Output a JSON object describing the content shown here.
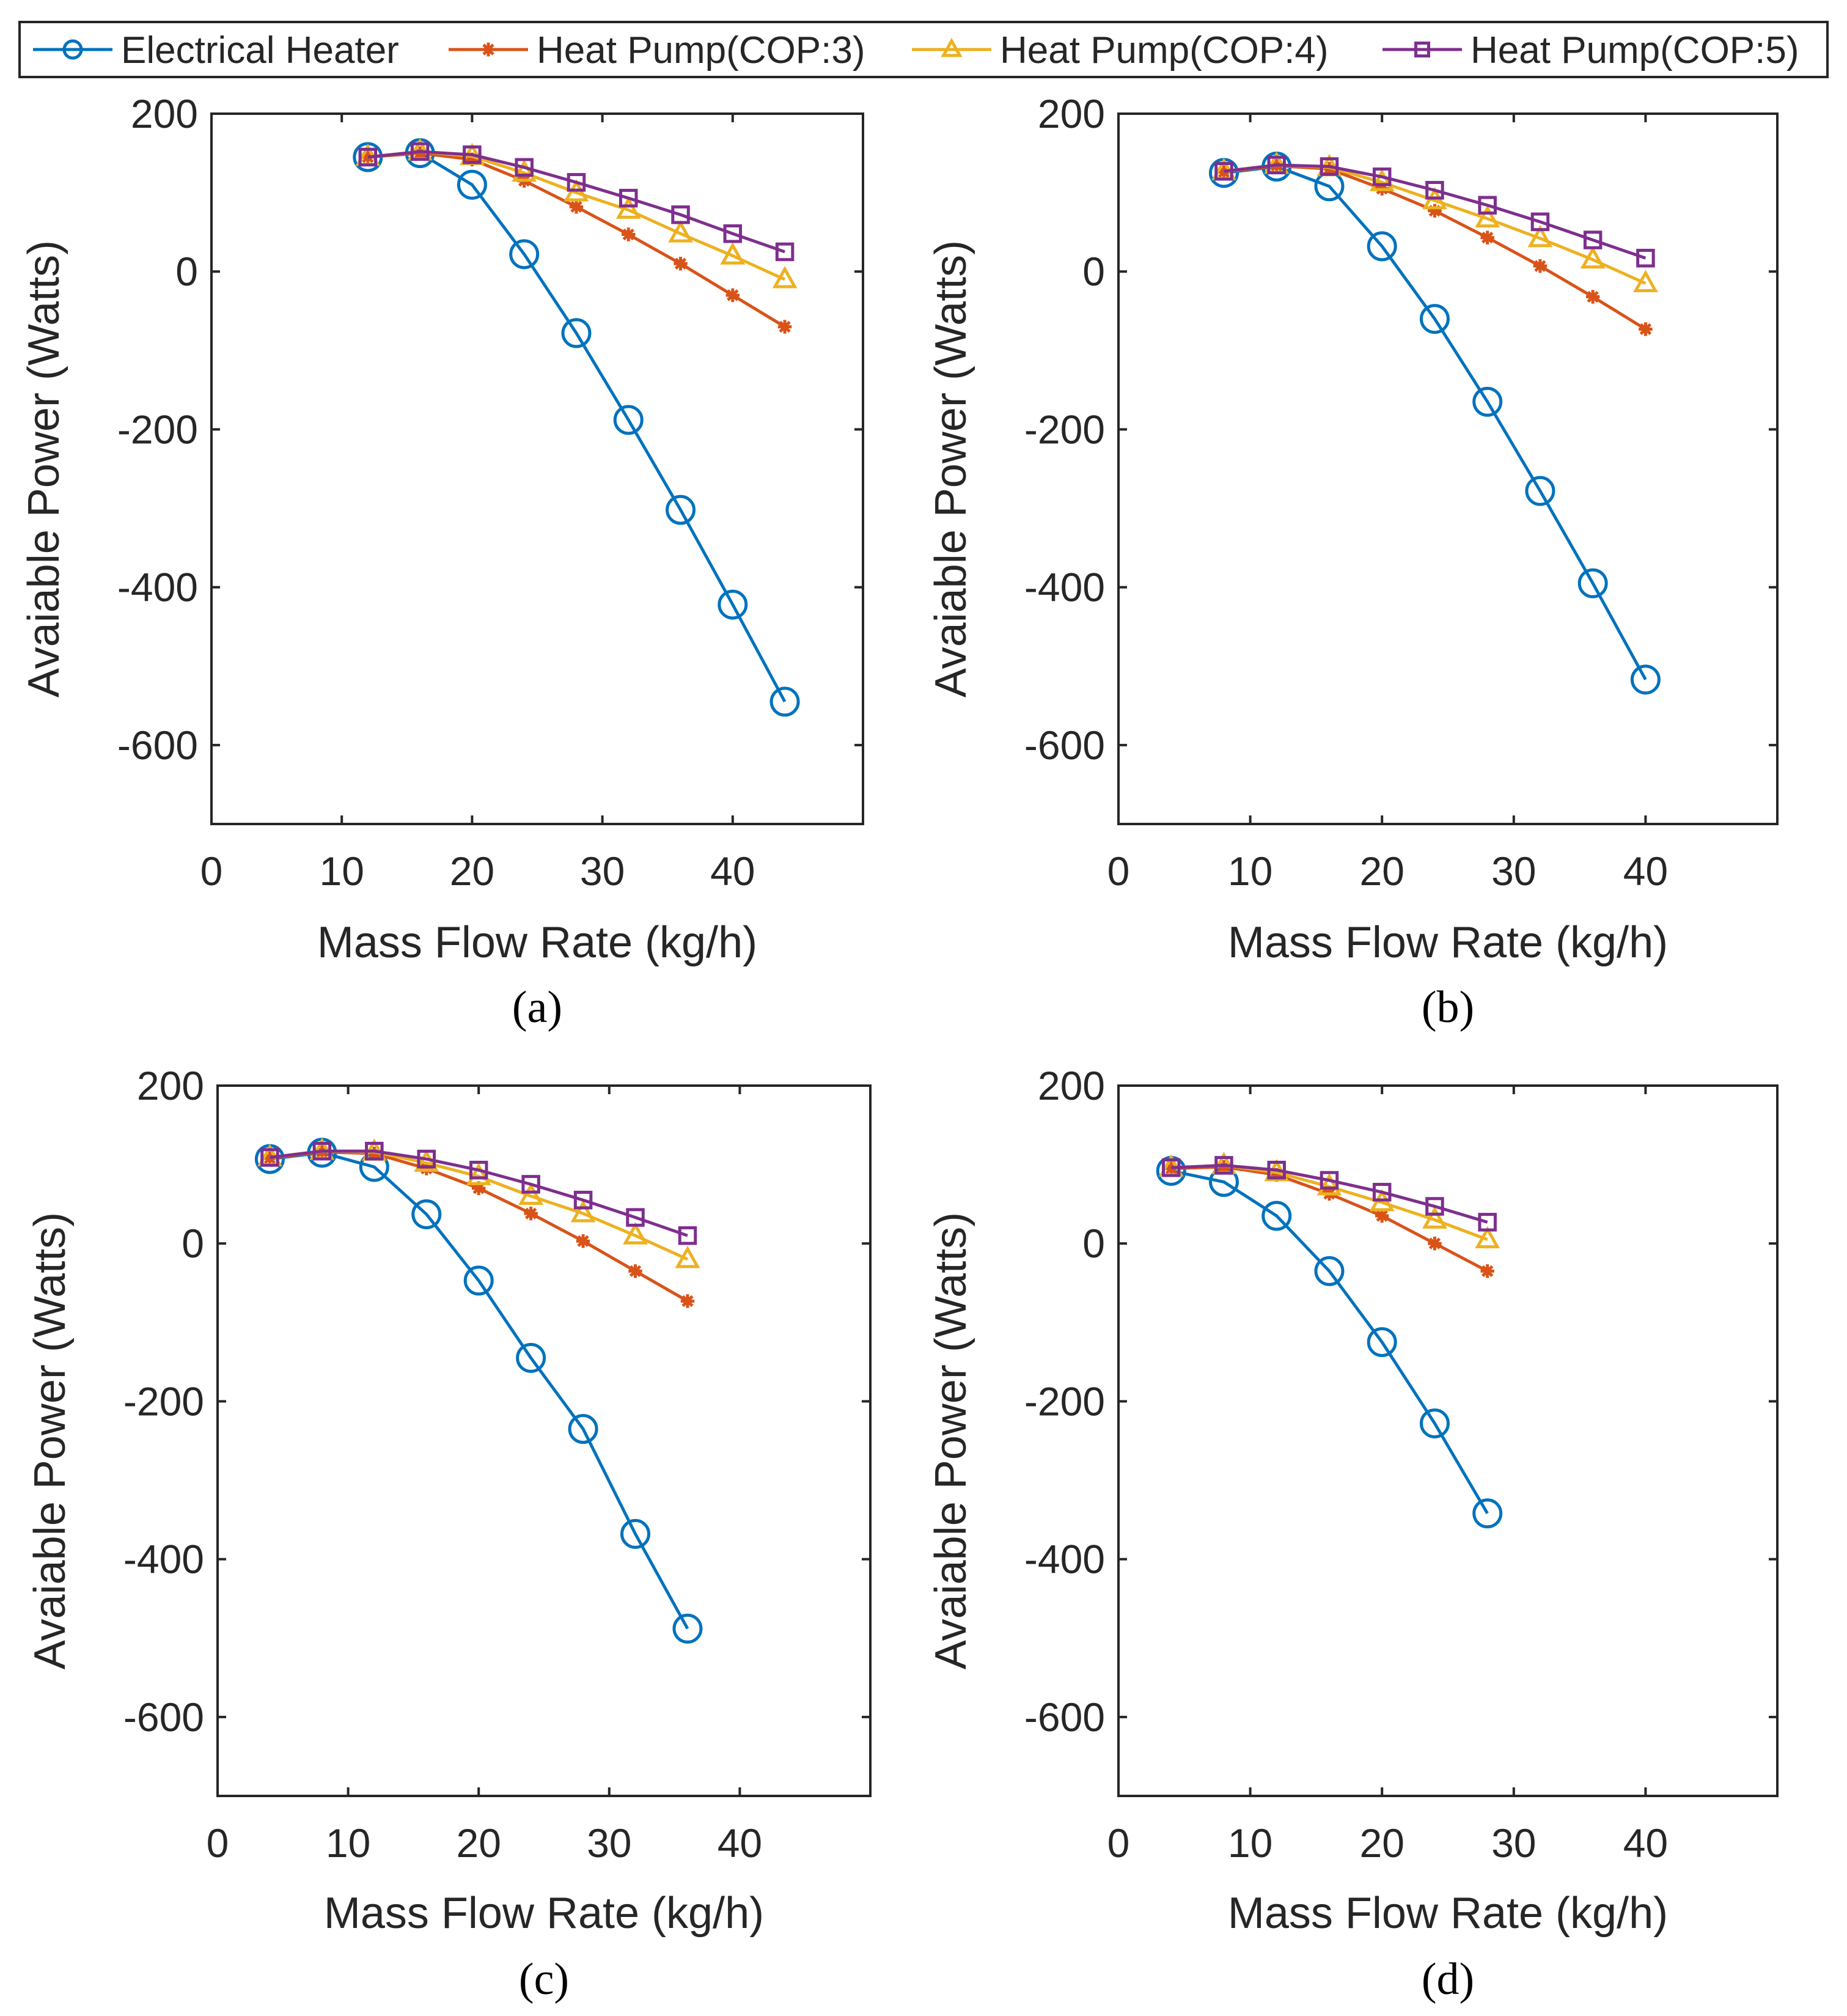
{
  "legend": {
    "entries": [
      {
        "label": "Electrical Heater",
        "color": "#0072BD",
        "marker": "circle"
      },
      {
        "label": "Heat Pump(COP:3)",
        "color": "#D95319",
        "marker": "asterisk"
      },
      {
        "label": "Heat Pump(COP:4)",
        "color": "#EDB120",
        "marker": "triangle"
      },
      {
        "label": "Heat Pump(COP:5)",
        "color": "#7E2F8E",
        "marker": "square"
      }
    ]
  },
  "chart_data": [
    {
      "type": "line",
      "caption": "(a)",
      "xlabel": "Mass Flow Rate (kg/h)",
      "ylabel": "Avaiable Power (Watts)",
      "xlim": [
        0,
        50
      ],
      "ylim": [
        -700,
        200
      ],
      "xticks": [
        "0",
        "10",
        "20",
        "30",
        "40"
      ],
      "yticks": [
        "200",
        "0",
        "-200",
        "-400",
        "-600"
      ],
      "x": [
        12,
        16,
        20,
        24,
        28,
        32,
        36,
        40,
        44
      ],
      "series": [
        {
          "name": "Electrical Heater",
          "values": [
            145,
            150,
            110,
            22,
            -78,
            -188,
            -302,
            -422,
            -545
          ]
        },
        {
          "name": "Heat Pump(COP:3)",
          "values": [
            145,
            150,
            142,
            115,
            82,
            47,
            10,
            -30,
            -70
          ]
        },
        {
          "name": "Heat Pump(COP:4)",
          "values": [
            145,
            152,
            146,
            125,
            100,
            78,
            48,
            20,
            -10
          ]
        },
        {
          "name": "Heat Pump(COP:5)",
          "values": [
            145,
            152,
            148,
            132,
            113,
            93,
            72,
            48,
            25
          ]
        }
      ]
    },
    {
      "type": "line",
      "caption": "(b)",
      "xlabel": "Mass Flow Rate (kg/h)",
      "ylabel": "Avaiable Power (Watts)",
      "xlim": [
        0,
        50
      ],
      "ylim": [
        -700,
        200
      ],
      "xticks": [
        "0",
        "10",
        "20",
        "30",
        "40"
      ],
      "yticks": [
        "200",
        "0",
        "-200",
        "-400",
        "-600"
      ],
      "x": [
        8,
        12,
        16,
        20,
        24,
        28,
        32,
        36,
        40
      ],
      "series": [
        {
          "name": "Electrical Heater",
          "values": [
            125,
            133,
            108,
            32,
            -60,
            -165,
            -278,
            -395,
            -517
          ]
        },
        {
          "name": "Heat Pump(COP:3)",
          "values": [
            126,
            134,
            130,
            105,
            77,
            43,
            7,
            -32,
            -73
          ]
        },
        {
          "name": "Heat Pump(COP:4)",
          "values": [
            127,
            135,
            132,
            113,
            90,
            67,
            42,
            15,
            -15
          ]
        },
        {
          "name": "Heat Pump(COP:5)",
          "values": [
            127,
            135,
            133,
            120,
            103,
            84,
            63,
            40,
            17
          ]
        }
      ]
    },
    {
      "type": "line",
      "caption": "(c)",
      "xlabel": "Mass Flow Rate (kg/h)",
      "ylabel": "Avaiable Power (Watts)",
      "xlim": [
        0,
        50
      ],
      "ylim": [
        -700,
        200
      ],
      "xticks": [
        "0",
        "10",
        "20",
        "30",
        "40"
      ],
      "yticks": [
        "200",
        "0",
        "-200",
        "-400",
        "-600"
      ],
      "x": [
        4,
        8,
        12,
        16,
        20,
        24,
        28,
        32,
        36
      ],
      "series": [
        {
          "name": "Electrical Heater",
          "values": [
            107,
            115,
            97,
            37,
            -47,
            -145,
            -235,
            -368,
            -488
          ]
        },
        {
          "name": "Heat Pump(COP:3)",
          "values": [
            108,
            116,
            114,
            95,
            70,
            38,
            3,
            -35,
            -73
          ]
        },
        {
          "name": "Heat Pump(COP:4)",
          "values": [
            109,
            117,
            116,
            102,
            85,
            60,
            38,
            10,
            -20
          ]
        },
        {
          "name": "Heat Pump(COP:5)",
          "values": [
            109,
            117,
            117,
            107,
            93,
            75,
            55,
            33,
            10
          ]
        }
      ]
    },
    {
      "type": "line",
      "caption": "(d)",
      "xlabel": "Mass Flow Rate (kg/h)",
      "ylabel": "Avaiable Power (Watts)",
      "xlim": [
        0,
        50
      ],
      "ylim": [
        -700,
        200
      ],
      "xticks": [
        "0",
        "10",
        "20",
        "30",
        "40"
      ],
      "yticks": [
        "200",
        "0",
        "-200",
        "-400",
        "-600"
      ],
      "x": [
        4,
        8,
        12,
        16,
        20,
        24,
        28
      ],
      "series": [
        {
          "name": "Electrical Heater",
          "values": [
            92,
            78,
            35,
            -35,
            -125,
            -228,
            -342
          ]
        },
        {
          "name": "Heat Pump(COP:3)",
          "values": [
            95,
            97,
            87,
            63,
            35,
            0,
            -35
          ]
        },
        {
          "name": "Heat Pump(COP:4)",
          "values": [
            96,
            99,
            90,
            72,
            52,
            30,
            5
          ]
        },
        {
          "name": "Heat Pump(COP:5)",
          "values": [
            96,
            99,
            93,
            80,
            65,
            47,
            27
          ]
        }
      ]
    }
  ]
}
